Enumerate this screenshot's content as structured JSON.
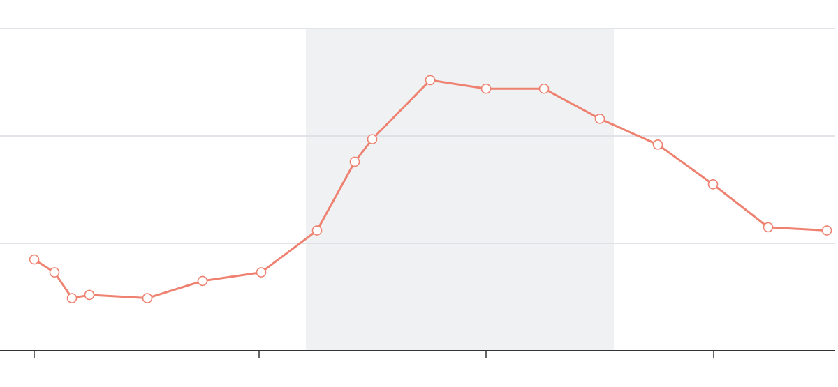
{
  "chart_data": {
    "type": "line",
    "title": "",
    "xlabel": "",
    "ylabel": "",
    "xlim": [
      0,
      1135
    ],
    "ylim": [
      0,
      3
    ],
    "grid": true,
    "legend": "none",
    "x_ticks": [
      0,
      322,
      647,
      973
    ],
    "y_gridlines": [
      1,
      2,
      3
    ],
    "highlight_band": {
      "x_start": 389,
      "x_end": 830
    },
    "series": [
      {
        "x": [
          0,
          29,
          54,
          79,
          162,
          241,
          325,
          405,
          459,
          484,
          567,
          647,
          730,
          810,
          893,
          972,
          1051,
          1135
        ],
        "y": [
          0.85,
          0.73,
          0.49,
          0.52,
          0.49,
          0.65,
          0.73,
          1.12,
          1.76,
          1.97,
          2.52,
          2.44,
          2.44,
          2.16,
          1.92,
          1.55,
          1.15,
          1.12
        ]
      }
    ],
    "colors": {
      "line": "#ee8170",
      "marker_fill": "#ffffff",
      "band": "#f0f1f2",
      "grid": "#d9dce3",
      "axis": "#333333"
    }
  }
}
